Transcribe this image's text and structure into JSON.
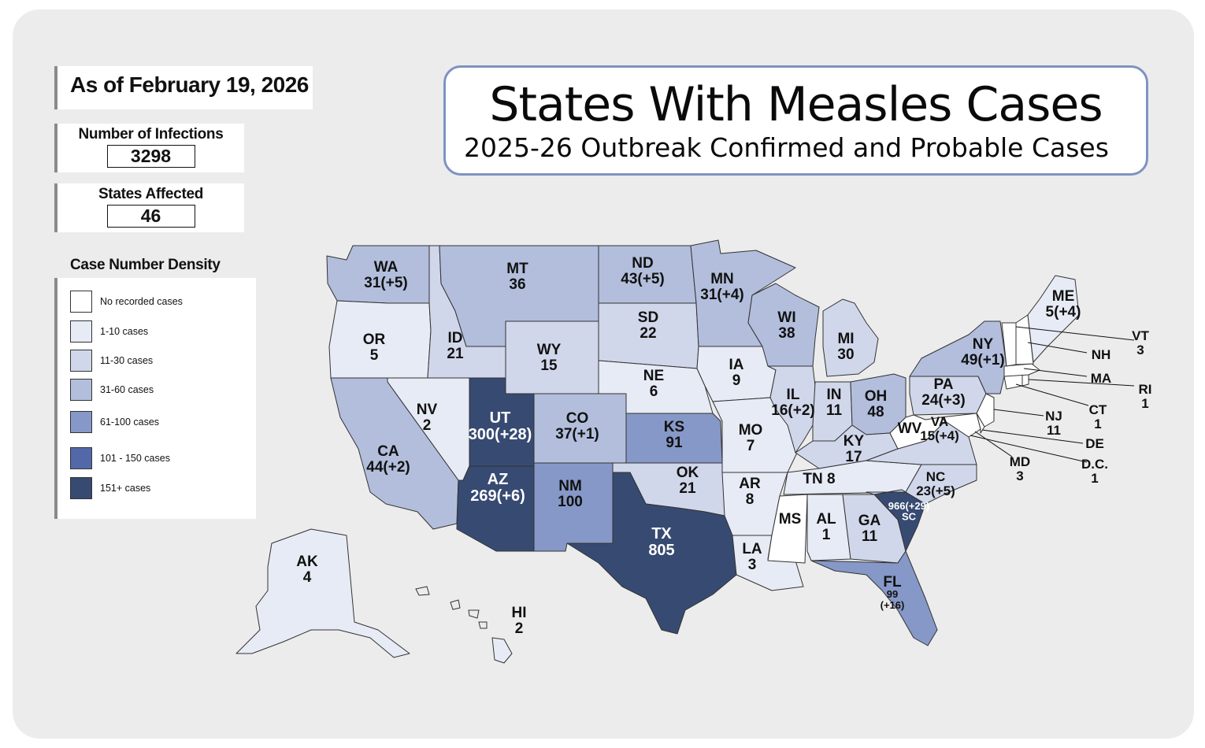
{
  "as_of": "As of February 19, 2026",
  "stats": {
    "infections_label": "Number of Infections",
    "infections_value": "3298",
    "states_label": "States Affected",
    "states_value": "46"
  },
  "title": {
    "main": "States With Measles Cases",
    "subtitle": "2025-26 Outbreak Confirmed and Probable Cases"
  },
  "legend": {
    "title": "Case Number Density",
    "items": [
      {
        "label": "No recorded cases",
        "color": "#ffffff"
      },
      {
        "label": "1-10 cases",
        "color": "#e7ebf5"
      },
      {
        "label": "11-30 cases",
        "color": "#d1d7ea"
      },
      {
        "label": "31-60 cases",
        "color": "#b2bedc"
      },
      {
        "label": "61-100 cases",
        "color": "#8698c7"
      },
      {
        "label": "101 - 150 cases",
        "color": "#5268a8"
      },
      {
        "label": "151+ cases",
        "color": "#374a72"
      }
    ]
  },
  "states": {
    "WA": {
      "abbr": "WA",
      "count": "31(+5)",
      "color": "#b2bedc"
    },
    "OR": {
      "abbr": "OR",
      "count": "5",
      "color": "#e7ebf5"
    },
    "CA": {
      "abbr": "CA",
      "count": "44(+2)",
      "color": "#b2bedc"
    },
    "NV": {
      "abbr": "NV",
      "count": "2",
      "color": "#e7ebf5"
    },
    "ID": {
      "abbr": "ID",
      "count": "21",
      "color": "#d1d7ea"
    },
    "MT": {
      "abbr": "MT",
      "count": "36",
      "color": "#b2bedc"
    },
    "WY": {
      "abbr": "WY",
      "count": "15",
      "color": "#d1d7ea"
    },
    "UT": {
      "abbr": "UT",
      "count": "300(+28)",
      "color": "#374a72"
    },
    "AZ": {
      "abbr": "AZ",
      "count": "269(+6)",
      "color": "#374a72"
    },
    "CO": {
      "abbr": "CO",
      "count": "37(+1)",
      "color": "#b2bedc"
    },
    "NM": {
      "abbr": "NM",
      "count": "100",
      "color": "#8698c7"
    },
    "ND": {
      "abbr": "ND",
      "count": "43(+5)",
      "color": "#b2bedc"
    },
    "SD": {
      "abbr": "SD",
      "count": "22",
      "color": "#d1d7ea"
    },
    "NE": {
      "abbr": "NE",
      "count": "6",
      "color": "#e7ebf5"
    },
    "KS": {
      "abbr": "KS",
      "count": "91",
      "color": "#8698c7"
    },
    "OK": {
      "abbr": "OK",
      "count": "21",
      "color": "#d1d7ea"
    },
    "TX": {
      "abbr": "TX",
      "count": "805",
      "color": "#374a72"
    },
    "MN": {
      "abbr": "MN",
      "count": "31(+4)",
      "color": "#b2bedc"
    },
    "IA": {
      "abbr": "IA",
      "count": "9",
      "color": "#e7ebf5"
    },
    "MO": {
      "abbr": "MO",
      "count": "7",
      "color": "#e7ebf5"
    },
    "AR": {
      "abbr": "AR",
      "count": "8",
      "color": "#e7ebf5"
    },
    "LA": {
      "abbr": "LA",
      "count": "3",
      "color": "#e7ebf5"
    },
    "WI": {
      "abbr": "WI",
      "count": "38",
      "color": "#b2bedc"
    },
    "IL": {
      "abbr": "IL",
      "count": "16(+2)",
      "color": "#d1d7ea"
    },
    "MI": {
      "abbr": "MI",
      "count": "30",
      "color": "#d1d7ea"
    },
    "IN": {
      "abbr": "IN",
      "count": "11",
      "color": "#d1d7ea"
    },
    "OH": {
      "abbr": "OH",
      "count": "48",
      "color": "#b2bedc"
    },
    "KY": {
      "abbr": "KY",
      "count": "17",
      "color": "#d1d7ea"
    },
    "TN": {
      "abbr": "TN",
      "count": "8",
      "label": "TN 8",
      "color": "#e7ebf5"
    },
    "MS": {
      "abbr": "MS",
      "count": "",
      "color": "#ffffff"
    },
    "AL": {
      "abbr": "AL",
      "count": "1",
      "color": "#e7ebf5"
    },
    "GA": {
      "abbr": "GA",
      "count": "11",
      "color": "#d1d7ea"
    },
    "FL": {
      "abbr": "FL",
      "count": "99",
      "count2": "(+16)",
      "color": "#8698c7"
    },
    "SC": {
      "abbr": "SC",
      "count": "966(+29)",
      "color": "#374a72"
    },
    "NC": {
      "abbr": "NC",
      "count": "23(+5)",
      "color": "#d1d7ea"
    },
    "VA": {
      "abbr": "VA",
      "count": "15(+4)",
      "color": "#d1d7ea"
    },
    "WV": {
      "abbr": "WV",
      "count": "",
      "color": "#ffffff"
    },
    "PA": {
      "abbr": "PA",
      "count": "24(+3)",
      "color": "#d1d7ea"
    },
    "NY": {
      "abbr": "NY",
      "count": "49(+1)",
      "color": "#b2bedc"
    },
    "ME": {
      "abbr": "ME",
      "count": "5(+4)",
      "color": "#e7ebf5"
    },
    "AK": {
      "abbr": "AK",
      "count": "4",
      "color": "#e7ebf5"
    },
    "HI": {
      "abbr": "HI",
      "count": "2",
      "color": "#e7ebf5"
    }
  },
  "callouts": {
    "VT": {
      "abbr": "VT",
      "count": "3"
    },
    "NH": {
      "abbr": "NH",
      "count": ""
    },
    "MA": {
      "abbr": "MA",
      "count": ""
    },
    "RI": {
      "abbr": "RI",
      "count": "1"
    },
    "CT": {
      "abbr": "CT",
      "count": "1"
    },
    "NJ": {
      "abbr": "NJ",
      "count": "11"
    },
    "DE": {
      "abbr": "DE",
      "count": ""
    },
    "MD": {
      "abbr": "MD",
      "count": "3"
    },
    "DC": {
      "abbr": "D.C.",
      "count": "1"
    }
  }
}
